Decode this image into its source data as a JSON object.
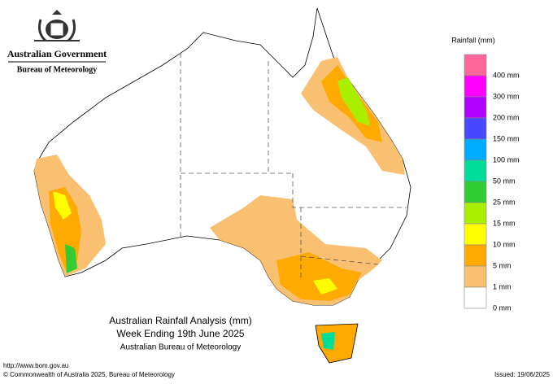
{
  "header": {
    "government": "Australian Government",
    "bureau": "Bureau of Meteorology"
  },
  "legend": {
    "title": "Rainfall (mm)",
    "colors": [
      "#ff6699",
      "#ff00ff",
      "#b000ff",
      "#4848ff",
      "#00aaff",
      "#00dd99",
      "#33cc33",
      "#aaee00",
      "#ffff00",
      "#ffaa00",
      "#f8c070",
      "#ffffff"
    ],
    "labels": [
      "400 mm",
      "300 mm",
      "200 mm",
      "150 mm",
      "100 mm",
      "50 mm",
      "25 mm",
      "15 mm",
      "10 mm",
      "5 mm",
      "1 mm",
      "0 mm"
    ]
  },
  "map_title": {
    "line1": "Australian Rainfall Analysis (mm)",
    "line2": "Week Ending 19th June 2025",
    "line3": "Australian Bureau of Meteorology"
  },
  "footer": {
    "url": "http://www.bom.gov.au",
    "copyright": "© Commonwealth of Australia 2025, Bureau of Meteorology",
    "issued": "Issued: 19/06/2025"
  }
}
